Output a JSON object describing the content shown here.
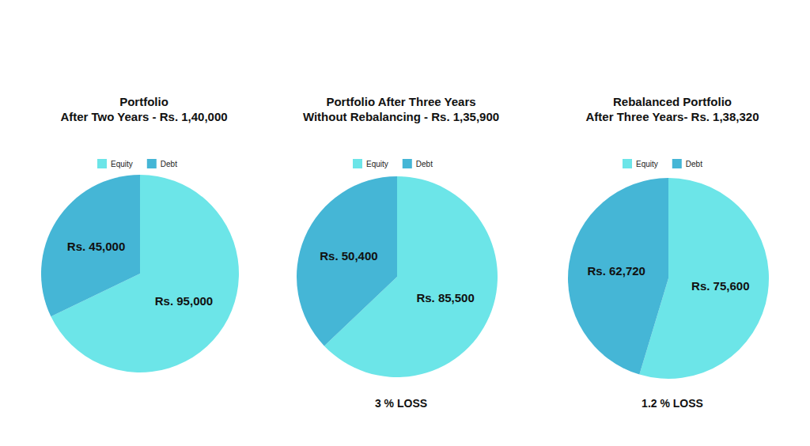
{
  "chart_data": [
    {
      "type": "pie",
      "title": "Portfolio",
      "subtitle": "After Two Years - Rs. 1,40,000",
      "categories": [
        "Equity",
        "Debt"
      ],
      "values": [
        95000,
        45000
      ],
      "value_labels": [
        "Rs. 95,000",
        "Rs. 45,000"
      ],
      "percent_labels": [
        "68%",
        "32%"
      ],
      "colors": [
        "#6ce5e8",
        "#45b6d6"
      ],
      "legend": "top",
      "data_labels": true
    },
    {
      "type": "pie",
      "title": "Portfolio After Three Years",
      "subtitle": "Without Rebalancing - Rs. 1,35,900",
      "categories": [
        "Equity",
        "Debt"
      ],
      "values": [
        85500,
        50400
      ],
      "value_labels": [
        "Rs. 85,500",
        "Rs. 50,400"
      ],
      "percent_labels": [
        "63%",
        "37%"
      ],
      "colors": [
        "#6ce5e8",
        "#45b6d6"
      ],
      "legend": "top",
      "data_labels": true,
      "annotation": "3 % LOSS"
    },
    {
      "type": "pie",
      "title": "Rebalanced Portfolio",
      "subtitle": "After Three Years- Rs. 1,38,320",
      "categories": [
        "Equity",
        "Debt"
      ],
      "values": [
        75600,
        62720
      ],
      "value_labels": [
        "Rs. 75,600",
        "Rs. 62,720"
      ],
      "percent_labels": [
        "55%",
        "45%"
      ],
      "colors": [
        "#6ce5e8",
        "#45b6d6"
      ],
      "legend": "top",
      "data_labels": true,
      "annotation": "1.2 % LOSS"
    }
  ]
}
